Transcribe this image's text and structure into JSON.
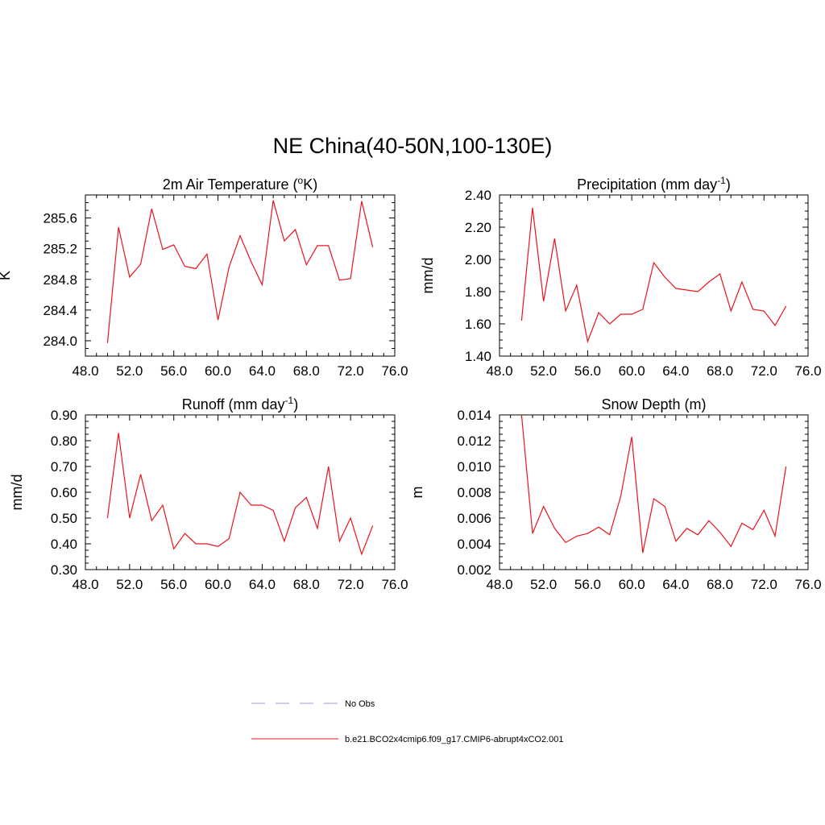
{
  "title": "NE China(40-50N,100-130E)",
  "colors": {
    "model_line": "#e8141b",
    "obs_line": "#9a9ae6",
    "axis": "#000000"
  },
  "legend": [
    {
      "label": "No Obs",
      "style": "dashed",
      "color": "#9a9ae6"
    },
    {
      "label": "b.e21.BCO2x4cmip6.f09_g17.CMIP6-abrupt4xCO2.001",
      "style": "solid",
      "color": "#e8141b"
    }
  ],
  "chart_data": [
    {
      "type": "line",
      "title": "2m Air Temperature (",
      "title_sup": "o",
      "title_suffix": "K)",
      "ylabel": "K",
      "xlim": [
        48,
        76
      ],
      "ylim": [
        283.8,
        285.9
      ],
      "xticks": [
        48,
        52,
        56,
        60,
        64,
        68,
        72,
        76
      ],
      "xtick_labels": [
        "48.0",
        "52.0",
        "56.0",
        "60.0",
        "64.0",
        "68.0",
        "72.0",
        "76.0"
      ],
      "yticks": [
        284.0,
        284.4,
        284.8,
        285.2,
        285.6
      ],
      "ytick_labels": [
        "284.0",
        "284.4",
        "284.8",
        "285.2",
        "285.6"
      ],
      "x": [
        50,
        51,
        52,
        53,
        54,
        55,
        56,
        57,
        58,
        59,
        60,
        61,
        62,
        63,
        64,
        65,
        66,
        67,
        68,
        69,
        70,
        71,
        72,
        73,
        74
      ],
      "values": [
        283.97,
        285.48,
        284.83,
        285.0,
        285.72,
        285.19,
        285.25,
        284.97,
        284.94,
        285.13,
        284.27,
        284.96,
        285.37,
        285.03,
        284.73,
        285.83,
        285.3,
        285.45,
        284.99,
        285.24,
        285.24,
        284.79,
        284.81,
        285.82,
        285.22
      ]
    },
    {
      "type": "line",
      "title": "Precipitation (mm day",
      "title_sup": "-1",
      "title_suffix": ")",
      "ylabel": "mm/d",
      "xlim": [
        48,
        76
      ],
      "ylim": [
        1.4,
        2.4
      ],
      "xticks": [
        48,
        52,
        56,
        60,
        64,
        68,
        72,
        76
      ],
      "xtick_labels": [
        "48.0",
        "52.0",
        "56.0",
        "60.0",
        "64.0",
        "68.0",
        "72.0",
        "76.0"
      ],
      "yticks": [
        1.4,
        1.6,
        1.8,
        2.0,
        2.2,
        2.4
      ],
      "ytick_labels": [
        "1.40",
        "1.60",
        "1.80",
        "2.00",
        "2.20",
        "2.40"
      ],
      "x": [
        50,
        51,
        52,
        53,
        54,
        55,
        56,
        57,
        58,
        59,
        60,
        61,
        62,
        63,
        64,
        65,
        66,
        67,
        68,
        69,
        70,
        71,
        72,
        73,
        74
      ],
      "values": [
        1.62,
        2.32,
        1.74,
        2.13,
        1.68,
        1.84,
        1.49,
        1.67,
        1.6,
        1.66,
        1.66,
        1.69,
        1.98,
        1.89,
        1.82,
        1.81,
        1.8,
        1.86,
        1.91,
        1.68,
        1.86,
        1.69,
        1.68,
        1.59,
        1.71
      ]
    },
    {
      "type": "line",
      "title": "Runoff (mm day",
      "title_sup": "-1",
      "title_suffix": ")",
      "ylabel": "mm/d",
      "xlim": [
        48,
        76
      ],
      "ylim": [
        0.3,
        0.9
      ],
      "xticks": [
        48,
        52,
        56,
        60,
        64,
        68,
        72,
        76
      ],
      "xtick_labels": [
        "48.0",
        "52.0",
        "56.0",
        "60.0",
        "64.0",
        "68.0",
        "72.0",
        "76.0"
      ],
      "yticks": [
        0.3,
        0.4,
        0.5,
        0.6,
        0.7,
        0.8,
        0.9
      ],
      "ytick_labels": [
        "0.30",
        "0.40",
        "0.50",
        "0.60",
        "0.70",
        "0.80",
        "0.90"
      ],
      "x": [
        50,
        51,
        52,
        53,
        54,
        55,
        56,
        57,
        58,
        59,
        60,
        61,
        62,
        63,
        64,
        65,
        66,
        67,
        68,
        69,
        70,
        71,
        72,
        73,
        74
      ],
      "values": [
        0.5,
        0.83,
        0.5,
        0.67,
        0.49,
        0.55,
        0.38,
        0.44,
        0.4,
        0.4,
        0.39,
        0.42,
        0.6,
        0.55,
        0.55,
        0.53,
        0.41,
        0.54,
        0.58,
        0.46,
        0.7,
        0.41,
        0.5,
        0.36,
        0.47
      ]
    },
    {
      "type": "line",
      "title": "Snow Depth (m)",
      "title_sup": "",
      "title_suffix": "",
      "ylabel": "m",
      "xlim": [
        48,
        76
      ],
      "ylim": [
        0.002,
        0.014
      ],
      "xticks": [
        48,
        52,
        56,
        60,
        64,
        68,
        72,
        76
      ],
      "xtick_labels": [
        "48.0",
        "52.0",
        "56.0",
        "60.0",
        "64.0",
        "68.0",
        "72.0",
        "76.0"
      ],
      "yticks": [
        0.002,
        0.004,
        0.006,
        0.008,
        0.01,
        0.012,
        0.014
      ],
      "ytick_labels": [
        "0.002",
        "0.004",
        "0.006",
        "0.008",
        "0.010",
        "0.012",
        "0.014"
      ],
      "x": [
        50,
        51,
        52,
        53,
        54,
        55,
        56,
        57,
        58,
        59,
        60,
        61,
        62,
        63,
        64,
        65,
        66,
        67,
        68,
        69,
        70,
        71,
        72,
        73,
        74
      ],
      "values": [
        0.014,
        0.0048,
        0.0069,
        0.0052,
        0.0041,
        0.0046,
        0.0048,
        0.0053,
        0.0047,
        0.0077,
        0.0123,
        0.0033,
        0.0075,
        0.0069,
        0.0042,
        0.0052,
        0.0047,
        0.0058,
        0.0049,
        0.0038,
        0.0056,
        0.0051,
        0.0066,
        0.0046,
        0.01
      ]
    }
  ]
}
